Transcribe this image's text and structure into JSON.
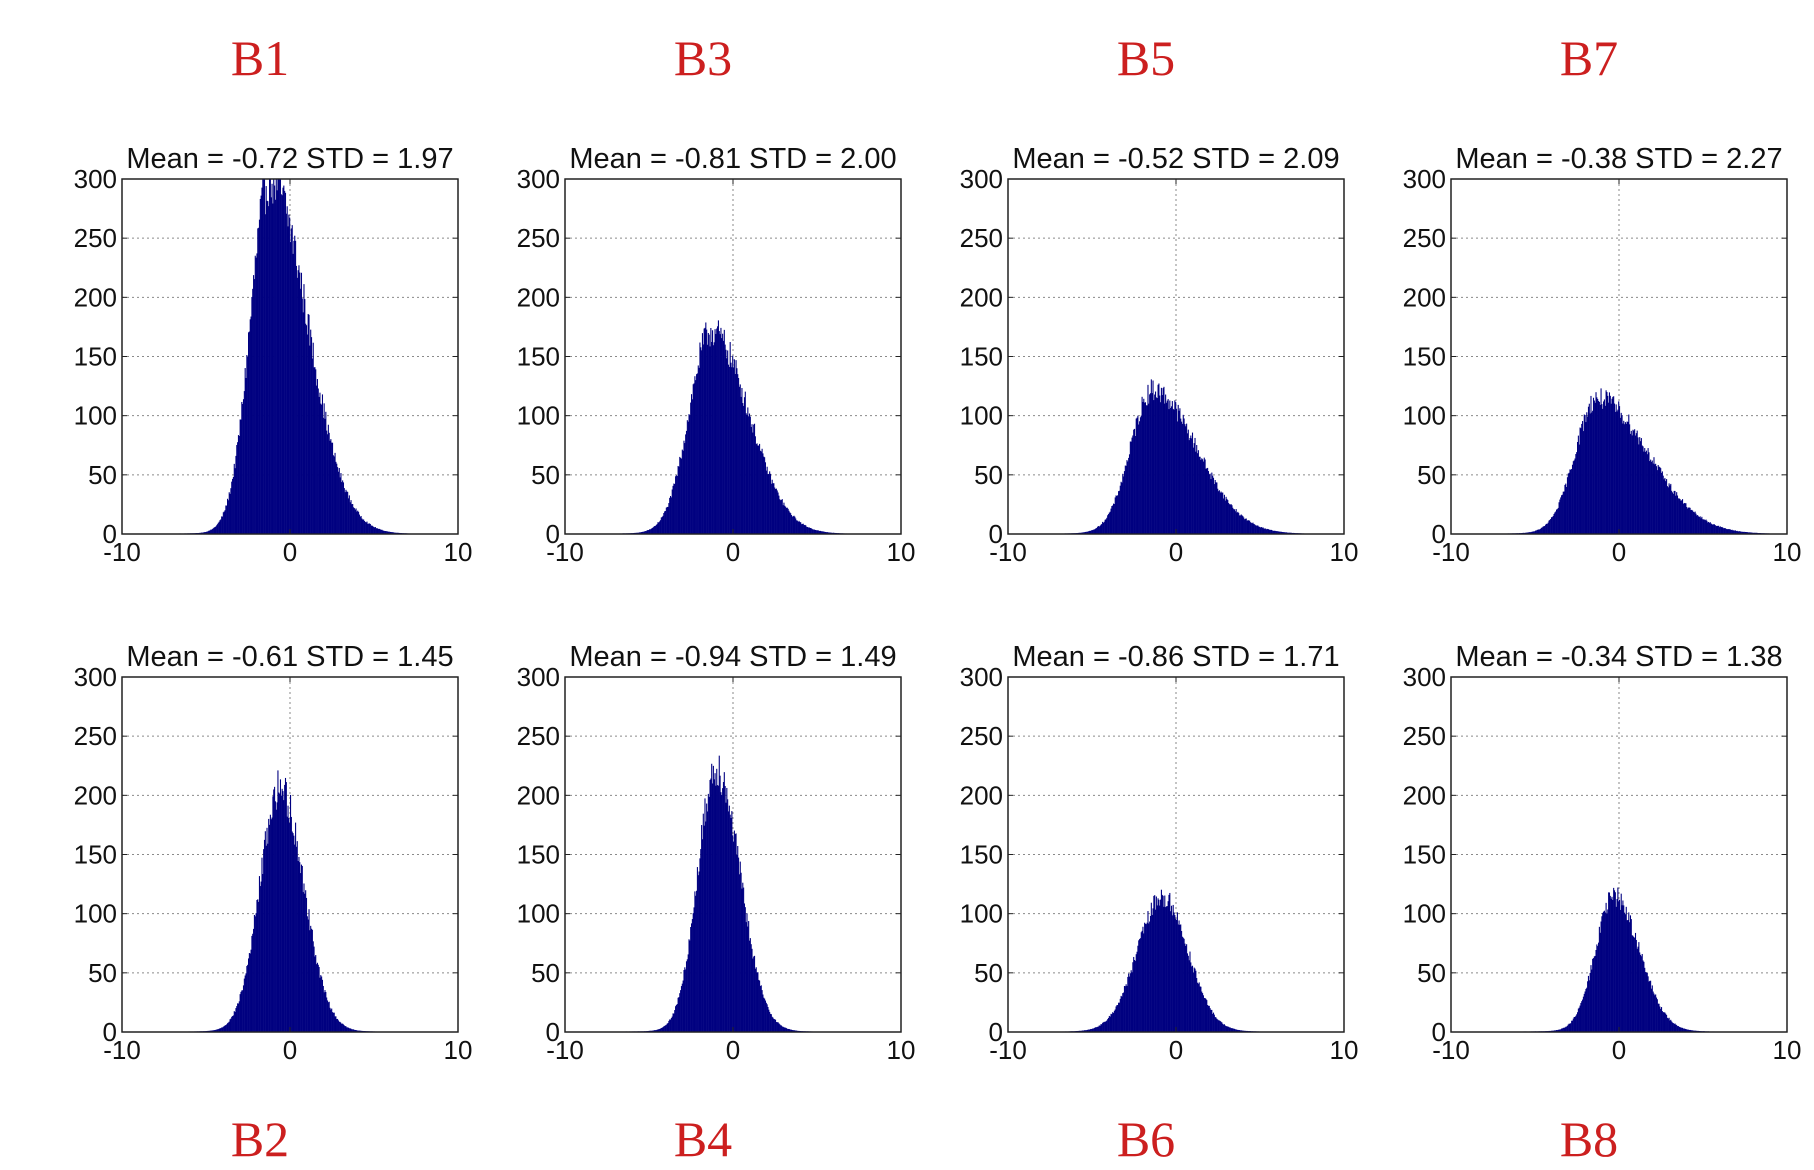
{
  "figure": {
    "bar_color": "#000080",
    "label_color": "#cc1f1f"
  },
  "chart_data": [
    {
      "type": "bar",
      "panel": "B1",
      "band_label": "B1",
      "title": "Mean = -0.72 STD = 1.97",
      "xlim": [
        -10,
        10
      ],
      "ylim": [
        0,
        300
      ],
      "xticks": [
        "-10",
        "0",
        "10"
      ],
      "yticks": [
        "0",
        "50",
        "100",
        "150",
        "200",
        "250",
        "300"
      ],
      "grid": true,
      "color": "#000080",
      "peak_x": -1.2,
      "peak_count": 300,
      "sigma_left": 1.15,
      "sigma_right": 2.2
    },
    {
      "type": "bar",
      "panel": "B3",
      "band_label": "B3",
      "title": "Mean = -0.81 STD = 2.00",
      "xlim": [
        -10,
        10
      ],
      "ylim": [
        0,
        300
      ],
      "xticks": [
        "-10",
        "0",
        "10"
      ],
      "yticks": [
        "0",
        "50",
        "100",
        "150",
        "200",
        "250",
        "300"
      ],
      "grid": true,
      "color": "#000080",
      "peak_x": -1.3,
      "peak_count": 170,
      "sigma_left": 1.3,
      "sigma_right": 2.2
    },
    {
      "type": "bar",
      "panel": "B5",
      "band_label": "B5",
      "title": "Mean = -0.52 STD = 2.09",
      "xlim": [
        -10,
        10
      ],
      "ylim": [
        0,
        300
      ],
      "xticks": [
        "-10",
        "0",
        "10"
      ],
      "yticks": [
        "0",
        "50",
        "100",
        "150",
        "200",
        "250",
        "300"
      ],
      "grid": true,
      "color": "#000080",
      "peak_x": -1.4,
      "peak_count": 120,
      "sigma_left": 1.3,
      "sigma_right": 2.6
    },
    {
      "type": "bar",
      "panel": "B7",
      "band_label": "B7",
      "title": "Mean = -0.38 STD = 2.27",
      "xlim": [
        -10,
        10
      ],
      "ylim": [
        0,
        300
      ],
      "xticks": [
        "-10",
        "0",
        "10"
      ],
      "yticks": [
        "0",
        "50",
        "100",
        "150",
        "200",
        "250",
        "300"
      ],
      "grid": true,
      "color": "#000080",
      "peak_x": -1.3,
      "peak_count": 113,
      "sigma_left": 1.3,
      "sigma_right": 3.0
    },
    {
      "type": "bar",
      "panel": "B2",
      "band_label": "B2",
      "title": "Mean = -0.61 STD = 1.45",
      "xlim": [
        -10,
        10
      ],
      "ylim": [
        0,
        300
      ],
      "xticks": [
        "-10",
        "0",
        "10"
      ],
      "yticks": [
        "0",
        "50",
        "100",
        "150",
        "200",
        "250",
        "300"
      ],
      "grid": true,
      "color": "#000080",
      "peak_x": -0.6,
      "peak_count": 205,
      "sigma_left": 1.2,
      "sigma_right": 1.4
    },
    {
      "type": "bar",
      "panel": "B4",
      "band_label": "B4",
      "title": "Mean = -0.94 STD = 1.49",
      "xlim": [
        -10,
        10
      ],
      "ylim": [
        0,
        300
      ],
      "xticks": [
        "-10",
        "0",
        "10"
      ],
      "yticks": [
        "0",
        "50",
        "100",
        "150",
        "200",
        "250",
        "300"
      ],
      "grid": true,
      "color": "#000080",
      "peak_x": -1.0,
      "peak_count": 222,
      "sigma_left": 1.1,
      "sigma_right": 1.4
    },
    {
      "type": "bar",
      "panel": "B6",
      "band_label": "B6",
      "title": "Mean = -0.86 STD = 1.71",
      "xlim": [
        -10,
        10
      ],
      "ylim": [
        0,
        300
      ],
      "xticks": [
        "-10",
        "0",
        "10"
      ],
      "yticks": [
        "0",
        "50",
        "100",
        "150",
        "200",
        "250",
        "300"
      ],
      "grid": true,
      "color": "#000080",
      "peak_x": -0.8,
      "peak_count": 112,
      "sigma_left": 1.5,
      "sigma_right": 1.5
    },
    {
      "type": "bar",
      "panel": "B8",
      "band_label": "B8",
      "title": "Mean = -0.34 STD = 1.38",
      "xlim": [
        -10,
        10
      ],
      "ylim": [
        0,
        300
      ],
      "xticks": [
        "-10",
        "0",
        "10"
      ],
      "yticks": [
        "0",
        "50",
        "100",
        "150",
        "200",
        "250",
        "300"
      ],
      "grid": true,
      "color": "#000080",
      "peak_x": -0.3,
      "peak_count": 113,
      "sigma_left": 1.1,
      "sigma_right": 1.5
    }
  ]
}
